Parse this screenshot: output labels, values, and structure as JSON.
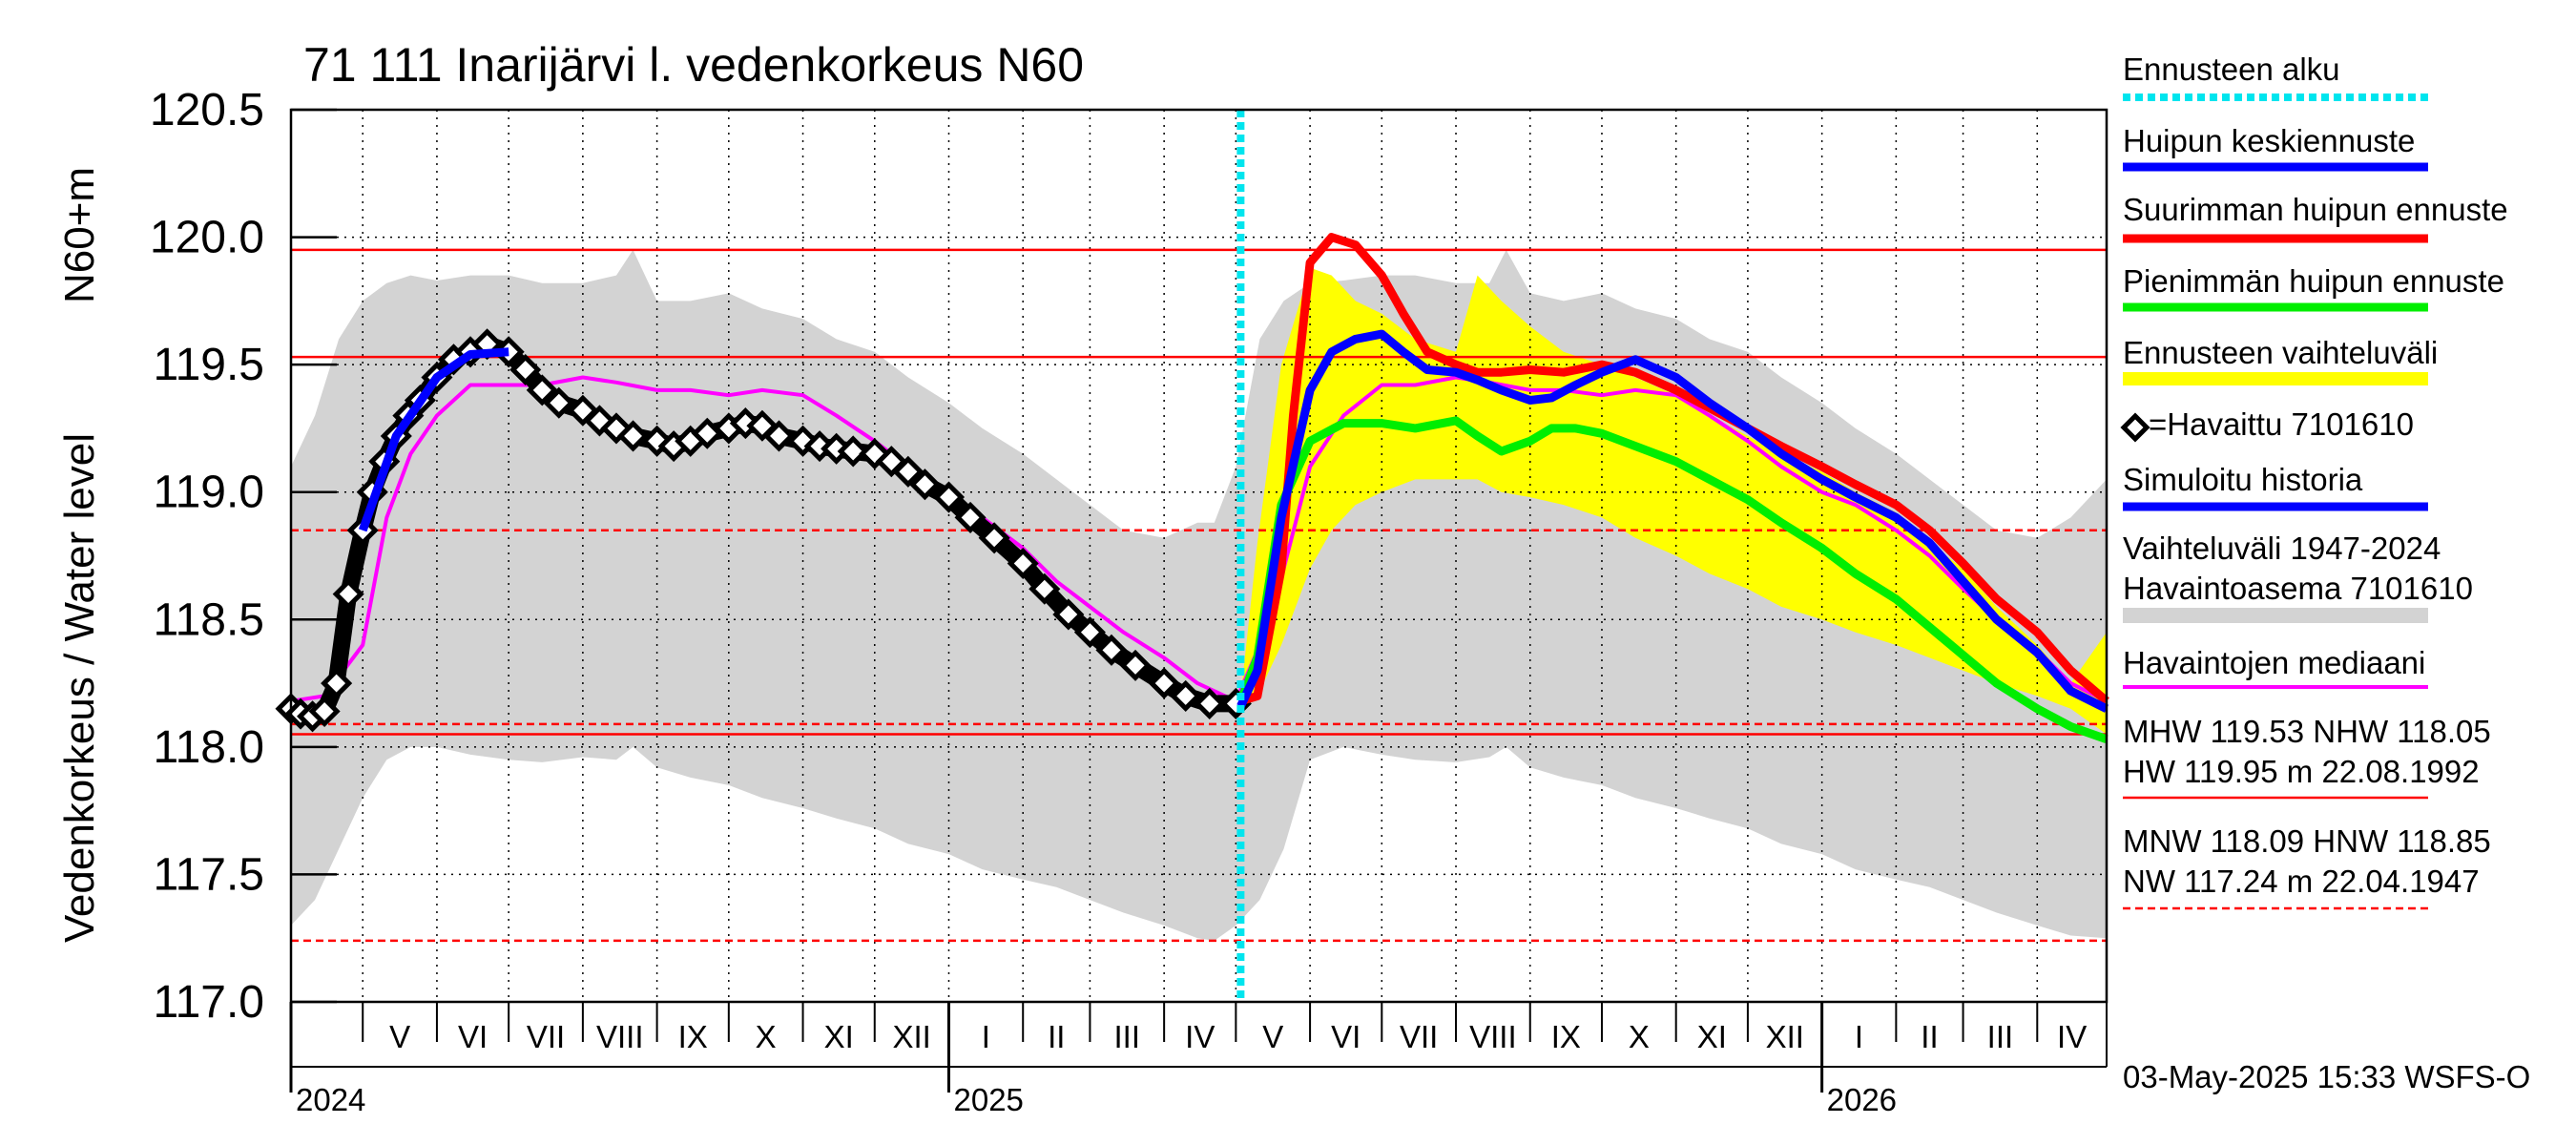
{
  "chart_data": {
    "type": "line",
    "title": "71 111 Inarijärvi l. vedenkorkeus N60",
    "ylabel_main": "Vedenkorkeus / Water level",
    "ylabel_unit": "N60+m",
    "ylim": [
      117.0,
      120.5
    ],
    "y_ticks": [
      "117.0",
      "117.5",
      "118.0",
      "118.5",
      "119.0",
      "119.5",
      "120.0",
      "120.5"
    ],
    "x_start": "2024-04-01",
    "x_end": "2026-04-30",
    "forecast_start": "2025-05-03",
    "months": [
      {
        "label": "V",
        "start": "2024-05-01",
        "end": "2024-06-01"
      },
      {
        "label": "VI",
        "start": "2024-06-01",
        "end": "2024-07-01"
      },
      {
        "label": "VII",
        "start": "2024-07-01",
        "end": "2024-08-01"
      },
      {
        "label": "VIII",
        "start": "2024-08-01",
        "end": "2024-09-01"
      },
      {
        "label": "IX",
        "start": "2024-09-01",
        "end": "2024-10-01"
      },
      {
        "label": "X",
        "start": "2024-10-01",
        "end": "2024-11-01"
      },
      {
        "label": "XI",
        "start": "2024-11-01",
        "end": "2024-12-01"
      },
      {
        "label": "XII",
        "start": "2024-12-01",
        "end": "2025-01-01"
      },
      {
        "label": "I",
        "start": "2025-01-01",
        "end": "2025-02-01"
      },
      {
        "label": "II",
        "start": "2025-02-01",
        "end": "2025-03-01"
      },
      {
        "label": "III",
        "start": "2025-03-01",
        "end": "2025-04-01"
      },
      {
        "label": "IV",
        "start": "2025-04-01",
        "end": "2025-05-01"
      },
      {
        "label": "V",
        "start": "2025-05-01",
        "end": "2025-06-01"
      },
      {
        "label": "VI",
        "start": "2025-06-01",
        "end": "2025-07-01"
      },
      {
        "label": "VII",
        "start": "2025-07-01",
        "end": "2025-08-01"
      },
      {
        "label": "VIII",
        "start": "2025-08-01",
        "end": "2025-09-01"
      },
      {
        "label": "IX",
        "start": "2025-09-01",
        "end": "2025-10-01"
      },
      {
        "label": "X",
        "start": "2025-10-01",
        "end": "2025-11-01"
      },
      {
        "label": "XI",
        "start": "2025-11-01",
        "end": "2025-12-01"
      },
      {
        "label": "XII",
        "start": "2025-12-01",
        "end": "2026-01-01"
      },
      {
        "label": "I",
        "start": "2026-01-01",
        "end": "2026-02-01"
      },
      {
        "label": "II",
        "start": "2026-02-01",
        "end": "2026-03-01"
      },
      {
        "label": "III",
        "start": "2026-03-01",
        "end": "2026-04-01"
      },
      {
        "label": "IV",
        "start": "2026-04-01",
        "end": "2026-04-30"
      }
    ],
    "years": [
      {
        "label": "2024",
        "date": "2024-04-01"
      },
      {
        "label": "2025",
        "date": "2025-01-01"
      },
      {
        "label": "2026",
        "date": "2026-01-01"
      }
    ],
    "ref_lines": [
      {
        "name": "HW",
        "value": 119.95,
        "style": "solid"
      },
      {
        "name": "MHW",
        "value": 119.53,
        "style": "solid"
      },
      {
        "name": "NHW",
        "value": 118.05,
        "style": "solid"
      },
      {
        "name": "HNW",
        "value": 118.85,
        "style": "dashed"
      },
      {
        "name": "MNW",
        "value": 118.09,
        "style": "dashed"
      },
      {
        "name": "NW",
        "value": 117.24,
        "style": "dashed"
      }
    ],
    "range_band": {
      "name": "Vaihteluväli 1947-2024 Havaintoasema 7101610",
      "x": [
        "2024-04-01",
        "2024-04-11",
        "2024-04-21",
        "2024-05-01",
        "2024-05-11",
        "2024-05-21",
        "2024-06-01",
        "2024-06-15",
        "2024-07-01",
        "2024-07-15",
        "2024-08-01",
        "2024-08-15",
        "2024-08-22",
        "2024-09-01",
        "2024-09-15",
        "2024-10-01",
        "2024-10-15",
        "2024-11-01",
        "2024-11-15",
        "2024-12-01",
        "2024-12-15",
        "2025-01-01",
        "2025-01-15",
        "2025-02-01",
        "2025-02-15",
        "2025-03-01",
        "2025-03-15",
        "2025-04-01",
        "2025-04-15",
        "2025-04-22",
        "2025-05-01",
        "2025-05-11",
        "2025-05-21",
        "2025-06-01",
        "2025-06-15",
        "2025-07-01",
        "2025-07-15",
        "2025-08-01",
        "2025-08-15",
        "2025-08-22",
        "2025-09-01",
        "2025-09-15",
        "2025-10-01",
        "2025-10-15",
        "2025-11-01",
        "2025-11-15",
        "2025-12-01",
        "2025-12-15",
        "2026-01-01",
        "2026-01-15",
        "2026-02-01",
        "2026-02-15",
        "2026-03-01",
        "2026-03-15",
        "2026-04-01",
        "2026-04-15",
        "2026-04-30"
      ],
      "low": [
        117.3,
        117.4,
        117.6,
        117.8,
        117.95,
        118.0,
        118.0,
        117.97,
        117.95,
        117.94,
        117.96,
        117.95,
        118.0,
        117.92,
        117.88,
        117.85,
        117.8,
        117.76,
        117.72,
        117.68,
        117.62,
        117.58,
        117.52,
        117.48,
        117.45,
        117.4,
        117.35,
        117.3,
        117.25,
        117.24,
        117.3,
        117.4,
        117.6,
        117.95,
        118.0,
        117.97,
        117.95,
        117.94,
        117.96,
        118.0,
        117.92,
        117.88,
        117.85,
        117.8,
        117.76,
        117.72,
        117.68,
        117.62,
        117.58,
        117.52,
        117.48,
        117.45,
        117.4,
        117.35,
        117.3,
        117.26,
        117.25
      ],
      "high": [
        119.1,
        119.3,
        119.6,
        119.75,
        119.82,
        119.85,
        119.83,
        119.85,
        119.85,
        119.82,
        119.82,
        119.85,
        119.95,
        119.75,
        119.75,
        119.78,
        119.72,
        119.68,
        119.6,
        119.55,
        119.45,
        119.35,
        119.25,
        119.15,
        119.05,
        118.95,
        118.85,
        118.82,
        118.88,
        118.88,
        119.1,
        119.6,
        119.75,
        119.82,
        119.83,
        119.85,
        119.85,
        119.82,
        119.82,
        119.95,
        119.78,
        119.75,
        119.78,
        119.72,
        119.68,
        119.6,
        119.55,
        119.45,
        119.35,
        119.25,
        119.15,
        119.05,
        118.95,
        118.85,
        118.82,
        118.9,
        119.05
      ]
    },
    "forecast_band": {
      "name": "Ennusteen vaihteluväli",
      "x": [
        "2025-05-03",
        "2025-05-10",
        "2025-05-20",
        "2025-06-01",
        "2025-06-10",
        "2025-06-20",
        "2025-07-01",
        "2025-07-15",
        "2025-08-01",
        "2025-08-10",
        "2025-08-20",
        "2025-09-01",
        "2025-09-15",
        "2025-10-01",
        "2025-10-15",
        "2025-11-01",
        "2025-11-15",
        "2025-12-01",
        "2025-12-15",
        "2026-01-01",
        "2026-01-15",
        "2026-02-01",
        "2026-02-15",
        "2026-03-01",
        "2026-03-15",
        "2026-04-01",
        "2026-04-15",
        "2026-04-30"
      ],
      "low": [
        118.15,
        118.2,
        118.4,
        118.7,
        118.85,
        118.95,
        119.0,
        119.05,
        119.05,
        119.05,
        119.0,
        118.98,
        118.95,
        118.9,
        118.82,
        118.75,
        118.68,
        118.62,
        118.55,
        118.5,
        118.45,
        118.4,
        118.35,
        118.3,
        118.25,
        118.2,
        118.15,
        118.05
      ],
      "high": [
        118.2,
        118.8,
        119.5,
        119.88,
        119.85,
        119.75,
        119.7,
        119.6,
        119.55,
        119.85,
        119.75,
        119.65,
        119.55,
        119.5,
        119.45,
        119.38,
        119.3,
        119.22,
        119.15,
        119.08,
        119.0,
        118.92,
        118.8,
        118.7,
        118.55,
        118.4,
        118.25,
        118.45
      ]
    },
    "series": [
      {
        "name": "Havaintojen mediaani",
        "color": "#ff00ff",
        "x": [
          "2024-04-01",
          "2024-04-15",
          "2024-05-01",
          "2024-05-11",
          "2024-05-21",
          "2024-06-01",
          "2024-06-15",
          "2024-07-01",
          "2024-07-15",
          "2024-08-01",
          "2024-08-15",
          "2024-09-01",
          "2024-09-15",
          "2024-10-01",
          "2024-10-15",
          "2024-11-01",
          "2024-11-15",
          "2024-12-01",
          "2024-12-15",
          "2025-01-01",
          "2025-01-15",
          "2025-02-01",
          "2025-02-15",
          "2025-03-01",
          "2025-03-15",
          "2025-04-01",
          "2025-04-15",
          "2025-05-01",
          "2025-05-11",
          "2025-05-21",
          "2025-06-01",
          "2025-06-15",
          "2025-07-01",
          "2025-07-15",
          "2025-08-01",
          "2025-08-15",
          "2025-09-01",
          "2025-09-15",
          "2025-10-01",
          "2025-10-15",
          "2025-11-01",
          "2025-11-15",
          "2025-12-01",
          "2025-12-15",
          "2026-01-01",
          "2026-01-15",
          "2026-02-01",
          "2026-02-15",
          "2026-03-01",
          "2026-03-15",
          "2026-04-01",
          "2026-04-15",
          "2026-04-30"
        ],
        "y": [
          118.18,
          118.2,
          118.4,
          118.9,
          119.15,
          119.3,
          119.42,
          119.42,
          119.42,
          119.45,
          119.43,
          119.4,
          119.4,
          119.38,
          119.4,
          119.38,
          119.3,
          119.2,
          119.1,
          119.0,
          118.9,
          118.78,
          118.65,
          118.55,
          118.45,
          118.35,
          118.25,
          118.18,
          118.4,
          118.7,
          119.1,
          119.3,
          119.42,
          119.42,
          119.45,
          119.43,
          119.4,
          119.4,
          119.38,
          119.4,
          119.38,
          119.3,
          119.2,
          119.1,
          119.0,
          118.95,
          118.85,
          118.75,
          118.62,
          118.5,
          118.38,
          118.25,
          118.18
        ]
      },
      {
        "name": "Havaittu 7101610",
        "color": "#000000",
        "marker": "diamond",
        "x": [
          "2024-04-01",
          "2024-04-05",
          "2024-04-10",
          "2024-04-15",
          "2024-04-20",
          "2024-04-25",
          "2024-05-01",
          "2024-05-05",
          "2024-05-10",
          "2024-05-15",
          "2024-05-20",
          "2024-05-25",
          "2024-06-01",
          "2024-06-08",
          "2024-06-15",
          "2024-06-22",
          "2024-07-01",
          "2024-07-08",
          "2024-07-15",
          "2024-07-22",
          "2024-08-01",
          "2024-08-08",
          "2024-08-15",
          "2024-08-22",
          "2024-09-01",
          "2024-09-08",
          "2024-09-15",
          "2024-09-22",
          "2024-10-01",
          "2024-10-08",
          "2024-10-15",
          "2024-10-22",
          "2024-11-01",
          "2024-11-08",
          "2024-11-15",
          "2024-11-22",
          "2024-12-01",
          "2024-12-08",
          "2024-12-15",
          "2024-12-22",
          "2025-01-01",
          "2025-01-10",
          "2025-01-20",
          "2025-02-01",
          "2025-02-10",
          "2025-02-20",
          "2025-03-01",
          "2025-03-10",
          "2025-03-20",
          "2025-04-01",
          "2025-04-10",
          "2025-04-20",
          "2025-05-01"
        ],
        "y": [
          118.15,
          118.13,
          118.12,
          118.14,
          118.25,
          118.6,
          118.85,
          119.0,
          119.12,
          119.22,
          119.3,
          119.36,
          119.45,
          119.52,
          119.55,
          119.58,
          119.55,
          119.48,
          119.4,
          119.35,
          119.32,
          119.28,
          119.25,
          119.22,
          119.2,
          119.18,
          119.2,
          119.23,
          119.25,
          119.27,
          119.26,
          119.22,
          119.2,
          119.18,
          119.17,
          119.16,
          119.15,
          119.12,
          119.08,
          119.03,
          118.98,
          118.9,
          118.82,
          118.72,
          118.62,
          118.52,
          118.45,
          118.38,
          118.32,
          118.25,
          118.2,
          118.17,
          118.17
        ]
      },
      {
        "name": "Simuloitu historia",
        "color": "#0000ff",
        "x": [
          "2024-05-01",
          "2024-05-15",
          "2024-06-01",
          "2024-06-15",
          "2024-07-01"
        ],
        "y": [
          118.85,
          119.22,
          119.45,
          119.54,
          119.55
        ]
      },
      {
        "name": "Suurimman huipun ennuste",
        "color": "#ff0000",
        "x": [
          "2025-05-03",
          "2025-05-10",
          "2025-05-20",
          "2025-05-25",
          "2025-06-01",
          "2025-06-10",
          "2025-06-20",
          "2025-07-01",
          "2025-07-10",
          "2025-07-20",
          "2025-08-01",
          "2025-08-10",
          "2025-08-20",
          "2025-09-01",
          "2025-09-15",
          "2025-10-01",
          "2025-10-15",
          "2025-11-01",
          "2025-11-15",
          "2025-12-01",
          "2025-12-15",
          "2026-01-01",
          "2026-01-15",
          "2026-02-01",
          "2026-02-15",
          "2026-03-01",
          "2026-03-15",
          "2026-04-01",
          "2026-04-15",
          "2026-04-30"
        ],
        "y": [
          118.18,
          118.2,
          118.7,
          119.3,
          119.9,
          120.0,
          119.97,
          119.85,
          119.7,
          119.55,
          119.5,
          119.47,
          119.47,
          119.48,
          119.47,
          119.5,
          119.47,
          119.4,
          119.33,
          119.25,
          119.18,
          119.1,
          119.03,
          118.95,
          118.85,
          118.72,
          118.58,
          118.45,
          118.3,
          118.18
        ]
      },
      {
        "name": "Pienimmän huipun ennuste",
        "color": "#00ee00",
        "x": [
          "2025-05-03",
          "2025-05-10",
          "2025-05-20",
          "2025-06-01",
          "2025-06-15",
          "2025-07-01",
          "2025-07-15",
          "2025-08-01",
          "2025-08-10",
          "2025-08-20",
          "2025-09-01",
          "2025-09-10",
          "2025-09-20",
          "2025-10-01",
          "2025-10-15",
          "2025-11-01",
          "2025-11-15",
          "2025-12-01",
          "2025-12-15",
          "2026-01-01",
          "2026-01-15",
          "2026-02-01",
          "2026-02-15",
          "2026-03-01",
          "2026-03-15",
          "2026-04-01",
          "2026-04-15",
          "2026-04-30"
        ],
        "y": [
          118.18,
          118.35,
          118.95,
          119.2,
          119.27,
          119.27,
          119.25,
          119.28,
          119.22,
          119.16,
          119.2,
          119.25,
          119.25,
          119.23,
          119.18,
          119.12,
          119.05,
          118.97,
          118.88,
          118.78,
          118.68,
          118.58,
          118.47,
          118.36,
          118.25,
          118.15,
          118.08,
          118.03
        ]
      },
      {
        "name": "Huipun keskiennuste",
        "color": "#0000ff",
        "x": [
          "2025-05-03",
          "2025-05-10",
          "2025-05-20",
          "2025-06-01",
          "2025-06-10",
          "2025-06-20",
          "2025-07-01",
          "2025-07-10",
          "2025-07-20",
          "2025-08-01",
          "2025-08-10",
          "2025-08-20",
          "2025-09-01",
          "2025-09-10",
          "2025-09-20",
          "2025-10-01",
          "2025-10-15",
          "2025-11-01",
          "2025-11-15",
          "2025-12-01",
          "2025-12-15",
          "2026-01-01",
          "2026-01-15",
          "2026-02-01",
          "2026-02-15",
          "2026-03-01",
          "2026-03-15",
          "2026-04-01",
          "2026-04-15",
          "2026-04-30"
        ],
        "y": [
          118.16,
          118.3,
          118.9,
          119.4,
          119.55,
          119.6,
          119.62,
          119.55,
          119.48,
          119.47,
          119.44,
          119.4,
          119.36,
          119.37,
          119.42,
          119.47,
          119.52,
          119.45,
          119.35,
          119.25,
          119.15,
          119.05,
          118.98,
          118.9,
          118.8,
          118.65,
          118.5,
          118.37,
          118.22,
          118.15
        ]
      }
    ],
    "legend": [
      {
        "label": "Ennusteen alku",
        "style": "cyan-dotted"
      },
      {
        "label": "Huipun keskiennuste",
        "style": "blue"
      },
      {
        "label": "Suurimman huipun ennuste",
        "style": "red"
      },
      {
        "label": "Pienimmän huipun ennuste",
        "style": "green"
      },
      {
        "label": "Ennusteen vaihteluväli",
        "style": "yellow"
      },
      {
        "label": "=Havaittu 7101610",
        "style": "diamond"
      },
      {
        "label": "Simuloitu historia",
        "style": "blue"
      },
      {
        "label": "Vaihteluväli 1947-2024",
        "label2": " Havaintoasema 7101610",
        "style": "grey-band"
      },
      {
        "label": "Havaintojen mediaani",
        "style": "magenta"
      },
      {
        "label": "MHW 119.53 NHW 118.05",
        "label2": "HW 119.95 m 22.08.1992",
        "style": "red-thin"
      },
      {
        "label": "MNW 118.09 HNW 118.85",
        "label2": "NW 117.24 m 22.04.1947",
        "style": "red-dashed"
      }
    ],
    "footer": "03-May-2025 15:33 WSFS-O"
  }
}
